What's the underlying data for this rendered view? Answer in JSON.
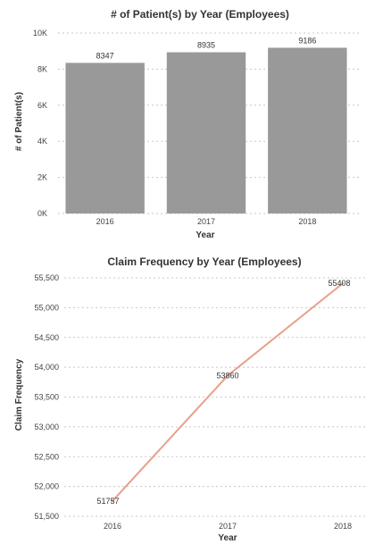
{
  "chart_data": [
    {
      "type": "bar",
      "title": "# of Patient(s) by Year (Employees)",
      "xlabel": "Year",
      "ylabel": "# of Patient(s)",
      "categories": [
        "2016",
        "2017",
        "2018"
      ],
      "values": [
        8347,
        8935,
        9186
      ],
      "data_labels": [
        "8347",
        "8935",
        "9186"
      ],
      "ylim": [
        0,
        10000
      ],
      "yticks": [
        0,
        2000,
        4000,
        6000,
        8000,
        10000
      ],
      "ytick_labels": [
        "0K",
        "2K",
        "4K",
        "6K",
        "8K",
        "10K"
      ],
      "grid": true,
      "bar_color": "#999999"
    },
    {
      "type": "line",
      "title": "Claim Frequency by Year (Employees)",
      "xlabel": "Year",
      "ylabel": "Claim Frequency",
      "categories": [
        "2016",
        "2017",
        "2018"
      ],
      "values": [
        51757,
        53860,
        55408
      ],
      "data_labels": [
        "51757",
        "53860",
        "55408"
      ],
      "ylim": [
        51500,
        55500
      ],
      "yticks": [
        51500,
        52000,
        52500,
        53000,
        53500,
        54000,
        54500,
        55000,
        55500
      ],
      "ytick_labels": [
        "51,500",
        "52,000",
        "52,500",
        "53,000",
        "53,500",
        "54,000",
        "54,500",
        "55,000",
        "55,500"
      ],
      "grid": true,
      "line_color": "#e8a08a"
    }
  ]
}
